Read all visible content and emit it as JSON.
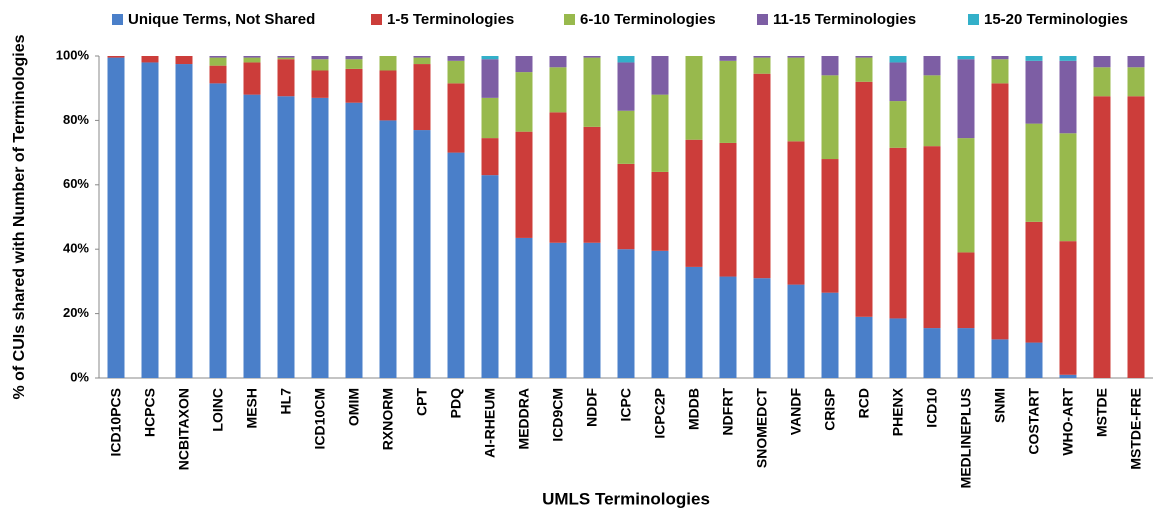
{
  "chart_data": {
    "type": "stacked_bar",
    "y_label": "% of CUIs shared with Number of Terminologies",
    "x_label": "UMLS Terminologies",
    "categories": [
      "ICD10PCS",
      "HCPCS",
      "NCBITAXON",
      "LOINC",
      "MESH",
      "HL7",
      "ICD10CM",
      "OMIM",
      "RXNORM",
      "CPT",
      "PDQ",
      "AI-RHEUM",
      "MEDDRA",
      "ICD9CM",
      "NDDF",
      "ICPC",
      "ICPC2P",
      "MDDB",
      "NDFRT",
      "SNOMEDCT",
      "VANDF",
      "CRISP",
      "RCD",
      "PHENX",
      "ICD10",
      "MEDLINEPLUS",
      "SNMI",
      "COSTART",
      "WHO-ART",
      "MSTDE",
      "MSTDE-FRE"
    ],
    "series": [
      {
        "name": "Unique Terms, Not Shared",
        "color": "#4a7fc9",
        "values": [
          99.5,
          98,
          97.5,
          91.5,
          88,
          87.5,
          87,
          85.5,
          80,
          77,
          70,
          63,
          43.5,
          42,
          42,
          40,
          39.5,
          34.5,
          31.5,
          31,
          29,
          26.5,
          19,
          18.5,
          15.5,
          15.5,
          12,
          11,
          1,
          0,
          0
        ]
      },
      {
        "name": "1-5 Terminologies",
        "color": "#cc3d3a",
        "values": [
          0.5,
          2,
          2.5,
          5.5,
          10,
          11.5,
          8.5,
          10.5,
          15.5,
          20.5,
          21.5,
          11.5,
          33,
          40.5,
          36,
          26.5,
          24.5,
          39.5,
          41.5,
          63.5,
          44.5,
          41.5,
          73,
          53,
          56.5,
          23.5,
          79.5,
          37.5,
          41.5,
          87.5,
          87.5
        ]
      },
      {
        "name": "6-10 Terminologies",
        "color": "#98b94d",
        "values": [
          0,
          0,
          0,
          2.5,
          1.5,
          0.5,
          3.5,
          3,
          4.5,
          2,
          7,
          12.5,
          18.5,
          14,
          21.5,
          16.5,
          24,
          26,
          25.5,
          5,
          26,
          26,
          7.5,
          14.5,
          22,
          35.5,
          7.5,
          30.5,
          33.5,
          9,
          9
        ]
      },
      {
        "name": "11-15 Terminologies",
        "color": "#7d5ea4",
        "values": [
          0,
          0,
          0,
          0.5,
          0.5,
          0.5,
          1,
          1,
          0,
          0.5,
          1.5,
          12,
          5,
          3.5,
          0.5,
          15,
          12,
          0,
          1.5,
          0.5,
          0.5,
          6,
          0.5,
          12,
          6,
          24.5,
          1,
          19.5,
          22.5,
          3.5,
          3.5
        ]
      },
      {
        "name": "15-20 Terminologies",
        "color": "#33b0c9",
        "values": [
          0,
          0,
          0,
          0,
          0,
          0,
          0,
          0,
          0,
          0,
          0,
          1,
          0,
          0,
          0,
          2,
          0,
          0,
          0,
          0,
          0,
          0,
          0,
          2,
          0,
          1,
          0,
          1.5,
          1.5,
          0,
          0
        ]
      }
    ],
    "ylim": [
      0,
      100
    ],
    "yticks": [
      {
        "value": 0,
        "label": "0%"
      },
      {
        "value": 20,
        "label": "20%"
      },
      {
        "value": 40,
        "label": "40%"
      },
      {
        "value": 60,
        "label": "60%"
      },
      {
        "value": 80,
        "label": "80%"
      },
      {
        "value": 100,
        "label": "100%"
      }
    ]
  }
}
